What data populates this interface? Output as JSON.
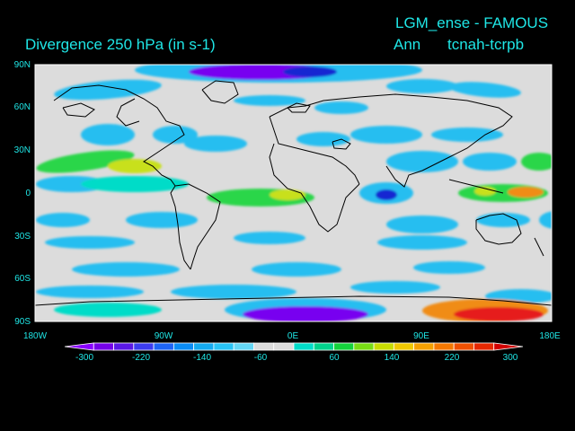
{
  "header": {
    "top_title": "LGM_ense - FAMOUS",
    "main_title": "Divergence   250 hPa  (in s-1)",
    "season": "Ann",
    "experiment": "tcnah-tcrpb"
  },
  "lat_labels": [
    "90N",
    "60N",
    "30N",
    "0",
    "30S",
    "60S",
    "90S"
  ],
  "lon_labels": [
    "180W",
    "90W",
    "0E",
    "90E",
    "180E"
  ],
  "colorbar": {
    "labels": [
      "-300",
      "-220",
      "-140",
      "-60",
      "60",
      "140",
      "220",
      "300"
    ],
    "colors": [
      "#8a00ff",
      "#7500e8",
      "#5a18e6",
      "#3c3cf0",
      "#1e64f5",
      "#0a8cf5",
      "#14aaf0",
      "#28c3f5",
      "#64d7f5",
      "#dcdcdc",
      "#dcdcdc",
      "#00dcc8",
      "#00d28c",
      "#14d23c",
      "#78dc14",
      "#c8dc00",
      "#f0c800",
      "#f5a000",
      "#f57800",
      "#f05000",
      "#e62800",
      "#d20000"
    ]
  },
  "map_colors": {
    "background": "#dcdcdc",
    "coast": "#000000",
    "blue": "#1e78f0",
    "light_blue": "#28bef0",
    "cyan": "#00dcc8",
    "green": "#2cd64a",
    "yellow": "#c8e01e",
    "orange": "#f08c14",
    "red": "#e61e1e",
    "purple": "#7800f0",
    "dark_blue": "#1428d2"
  }
}
